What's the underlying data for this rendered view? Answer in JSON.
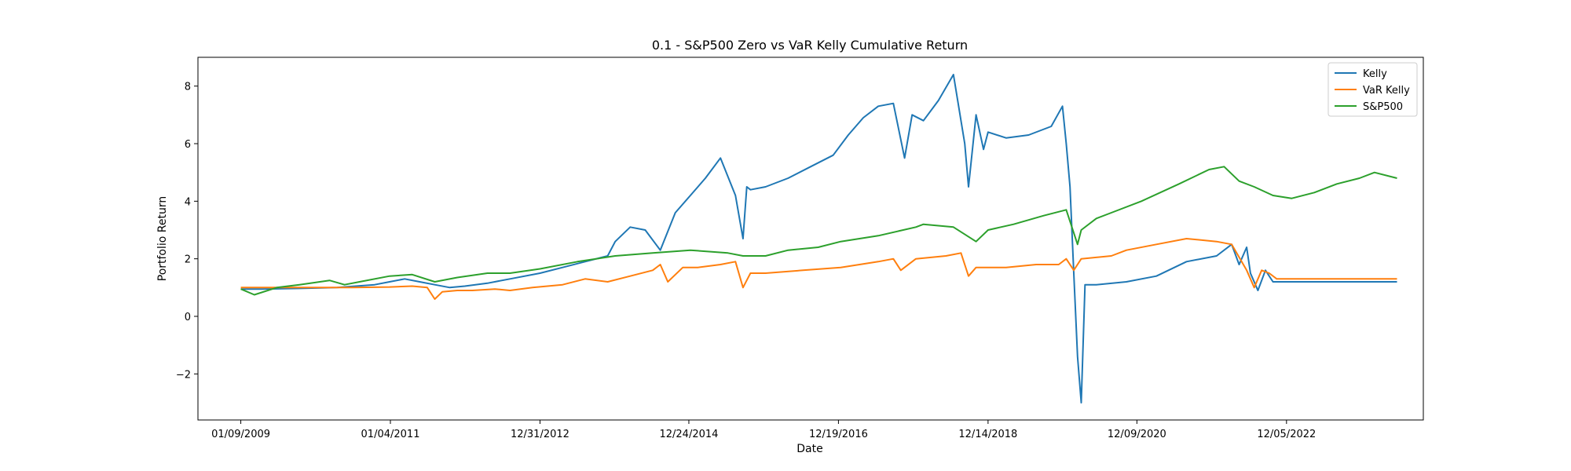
{
  "chart_data": {
    "type": "line",
    "title": "0.1 - S&P500 Zero vs VaR Kelly Cumulative Return",
    "xlabel": "Date",
    "ylabel": "Portfolio Return",
    "x_ticks": [
      "01/09/2009",
      "01/04/2011",
      "12/31/2012",
      "12/24/2014",
      "12/19/2016",
      "12/14/2018",
      "12/09/2020",
      "12/05/2022"
    ],
    "x_tick_years": [
      2009.02,
      2011.01,
      2013.0,
      2014.98,
      2016.97,
      2018.96,
      2020.94,
      2022.93
    ],
    "xlim": [
      2008.45,
      2024.75
    ],
    "ylim": [
      -3.6,
      9.0
    ],
    "y_ticks": [
      -2,
      0,
      2,
      4,
      6,
      8
    ],
    "y_tick_labels": [
      "−2",
      "0",
      "2",
      "4",
      "6",
      "8"
    ],
    "grid": false,
    "legend_position": "top-right",
    "series": [
      {
        "name": "Kelly",
        "color": "#1f77b4",
        "x": [
          2009.02,
          2009.3,
          2009.8,
          2010.3,
          2010.8,
          2011.0,
          2011.2,
          2011.4,
          2011.6,
          2011.8,
          2012.0,
          2012.3,
          2012.6,
          2013.0,
          2013.3,
          2013.6,
          2013.9,
          2014.0,
          2014.2,
          2014.4,
          2014.6,
          2014.8,
          2015.0,
          2015.2,
          2015.4,
          2015.6,
          2015.7,
          2015.75,
          2015.8,
          2016.0,
          2016.3,
          2016.6,
          2016.9,
          2017.1,
          2017.3,
          2017.5,
          2017.7,
          2017.85,
          2017.95,
          2018.1,
          2018.3,
          2018.5,
          2018.65,
          2018.7,
          2018.8,
          2018.9,
          2018.96,
          2019.2,
          2019.5,
          2019.8,
          2019.95,
          2020.0,
          2020.05,
          2020.1,
          2020.15,
          2020.2,
          2020.25,
          2020.4,
          2020.8,
          2021.2,
          2021.6,
          2022.0,
          2022.2,
          2022.3,
          2022.4,
          2022.45,
          2022.55,
          2022.65,
          2022.75,
          2023.0,
          2023.5,
          2024.0,
          2024.4
        ],
        "values": [
          0.95,
          0.95,
          0.97,
          1.0,
          1.1,
          1.2,
          1.3,
          1.2,
          1.1,
          1.0,
          1.05,
          1.15,
          1.3,
          1.5,
          1.7,
          1.9,
          2.1,
          2.6,
          3.1,
          3.0,
          2.3,
          3.6,
          4.2,
          4.8,
          5.5,
          4.2,
          2.7,
          4.5,
          4.4,
          4.5,
          4.8,
          5.2,
          5.6,
          6.3,
          6.9,
          7.3,
          7.4,
          5.5,
          7.0,
          6.8,
          7.5,
          8.4,
          6.0,
          4.5,
          7.0,
          5.8,
          6.4,
          6.2,
          6.3,
          6.6,
          7.3,
          6.0,
          4.5,
          1.5,
          -1.4,
          -3.0,
          1.1,
          1.1,
          1.2,
          1.4,
          1.9,
          2.1,
          2.5,
          1.8,
          2.4,
          1.5,
          0.9,
          1.6,
          1.2,
          1.2,
          1.2,
          1.2,
          1.2
        ]
      },
      {
        "name": "VaR Kelly",
        "color": "#ff7f0e",
        "x": [
          2009.02,
          2009.5,
          2010.0,
          2010.5,
          2011.0,
          2011.3,
          2011.5,
          2011.6,
          2011.7,
          2011.9,
          2012.1,
          2012.4,
          2012.6,
          2012.9,
          2013.3,
          2013.6,
          2013.9,
          2014.2,
          2014.5,
          2014.6,
          2014.7,
          2014.9,
          2015.1,
          2015.4,
          2015.6,
          2015.7,
          2015.8,
          2016.0,
          2016.5,
          2017.0,
          2017.5,
          2017.7,
          2017.8,
          2018.0,
          2018.4,
          2018.6,
          2018.7,
          2018.8,
          2019.2,
          2019.6,
          2019.9,
          2020.0,
          2020.1,
          2020.2,
          2020.6,
          2020.8,
          2021.2,
          2021.6,
          2022.0,
          2022.2,
          2022.4,
          2022.5,
          2022.6,
          2022.7,
          2022.8,
          2023.0,
          2023.5,
          2024.0,
          2024.4
        ],
        "values": [
          1.0,
          1.0,
          1.0,
          1.0,
          1.02,
          1.05,
          1.0,
          0.6,
          0.85,
          0.9,
          0.9,
          0.95,
          0.9,
          1.0,
          1.1,
          1.3,
          1.2,
          1.4,
          1.6,
          1.8,
          1.2,
          1.7,
          1.7,
          1.8,
          1.9,
          1.0,
          1.5,
          1.5,
          1.6,
          1.7,
          1.9,
          2.0,
          1.6,
          2.0,
          2.1,
          2.2,
          1.4,
          1.7,
          1.7,
          1.8,
          1.8,
          2.0,
          1.6,
          2.0,
          2.1,
          2.3,
          2.5,
          2.7,
          2.6,
          2.5,
          1.6,
          1.0,
          1.6,
          1.5,
          1.3,
          1.3,
          1.3,
          1.3,
          1.3
        ]
      },
      {
        "name": "S&P500",
        "color": "#2ca02c",
        "x": [
          2009.02,
          2009.2,
          2009.5,
          2009.8,
          2010.2,
          2010.4,
          2010.6,
          2011.0,
          2011.3,
          2011.6,
          2011.9,
          2012.3,
          2012.6,
          2013.0,
          2013.5,
          2014.0,
          2014.5,
          2015.0,
          2015.5,
          2015.7,
          2016.0,
          2016.3,
          2016.7,
          2017.0,
          2017.5,
          2018.0,
          2018.1,
          2018.5,
          2018.8,
          2018.96,
          2019.3,
          2019.7,
          2020.0,
          2020.15,
          2020.2,
          2020.4,
          2020.6,
          2021.0,
          2021.5,
          2021.9,
          2022.1,
          2022.3,
          2022.5,
          2022.75,
          2023.0,
          2023.3,
          2023.6,
          2023.9,
          2024.1,
          2024.4
        ],
        "values": [
          0.95,
          0.75,
          1.0,
          1.1,
          1.25,
          1.1,
          1.2,
          1.4,
          1.45,
          1.2,
          1.35,
          1.5,
          1.5,
          1.65,
          1.9,
          2.1,
          2.2,
          2.3,
          2.2,
          2.1,
          2.1,
          2.3,
          2.4,
          2.6,
          2.8,
          3.1,
          3.2,
          3.1,
          2.6,
          3.0,
          3.2,
          3.5,
          3.7,
          2.5,
          3.0,
          3.4,
          3.6,
          4.0,
          4.6,
          5.1,
          5.2,
          4.7,
          4.5,
          4.2,
          4.1,
          4.3,
          4.6,
          4.8,
          5.0,
          4.8
        ]
      }
    ]
  }
}
